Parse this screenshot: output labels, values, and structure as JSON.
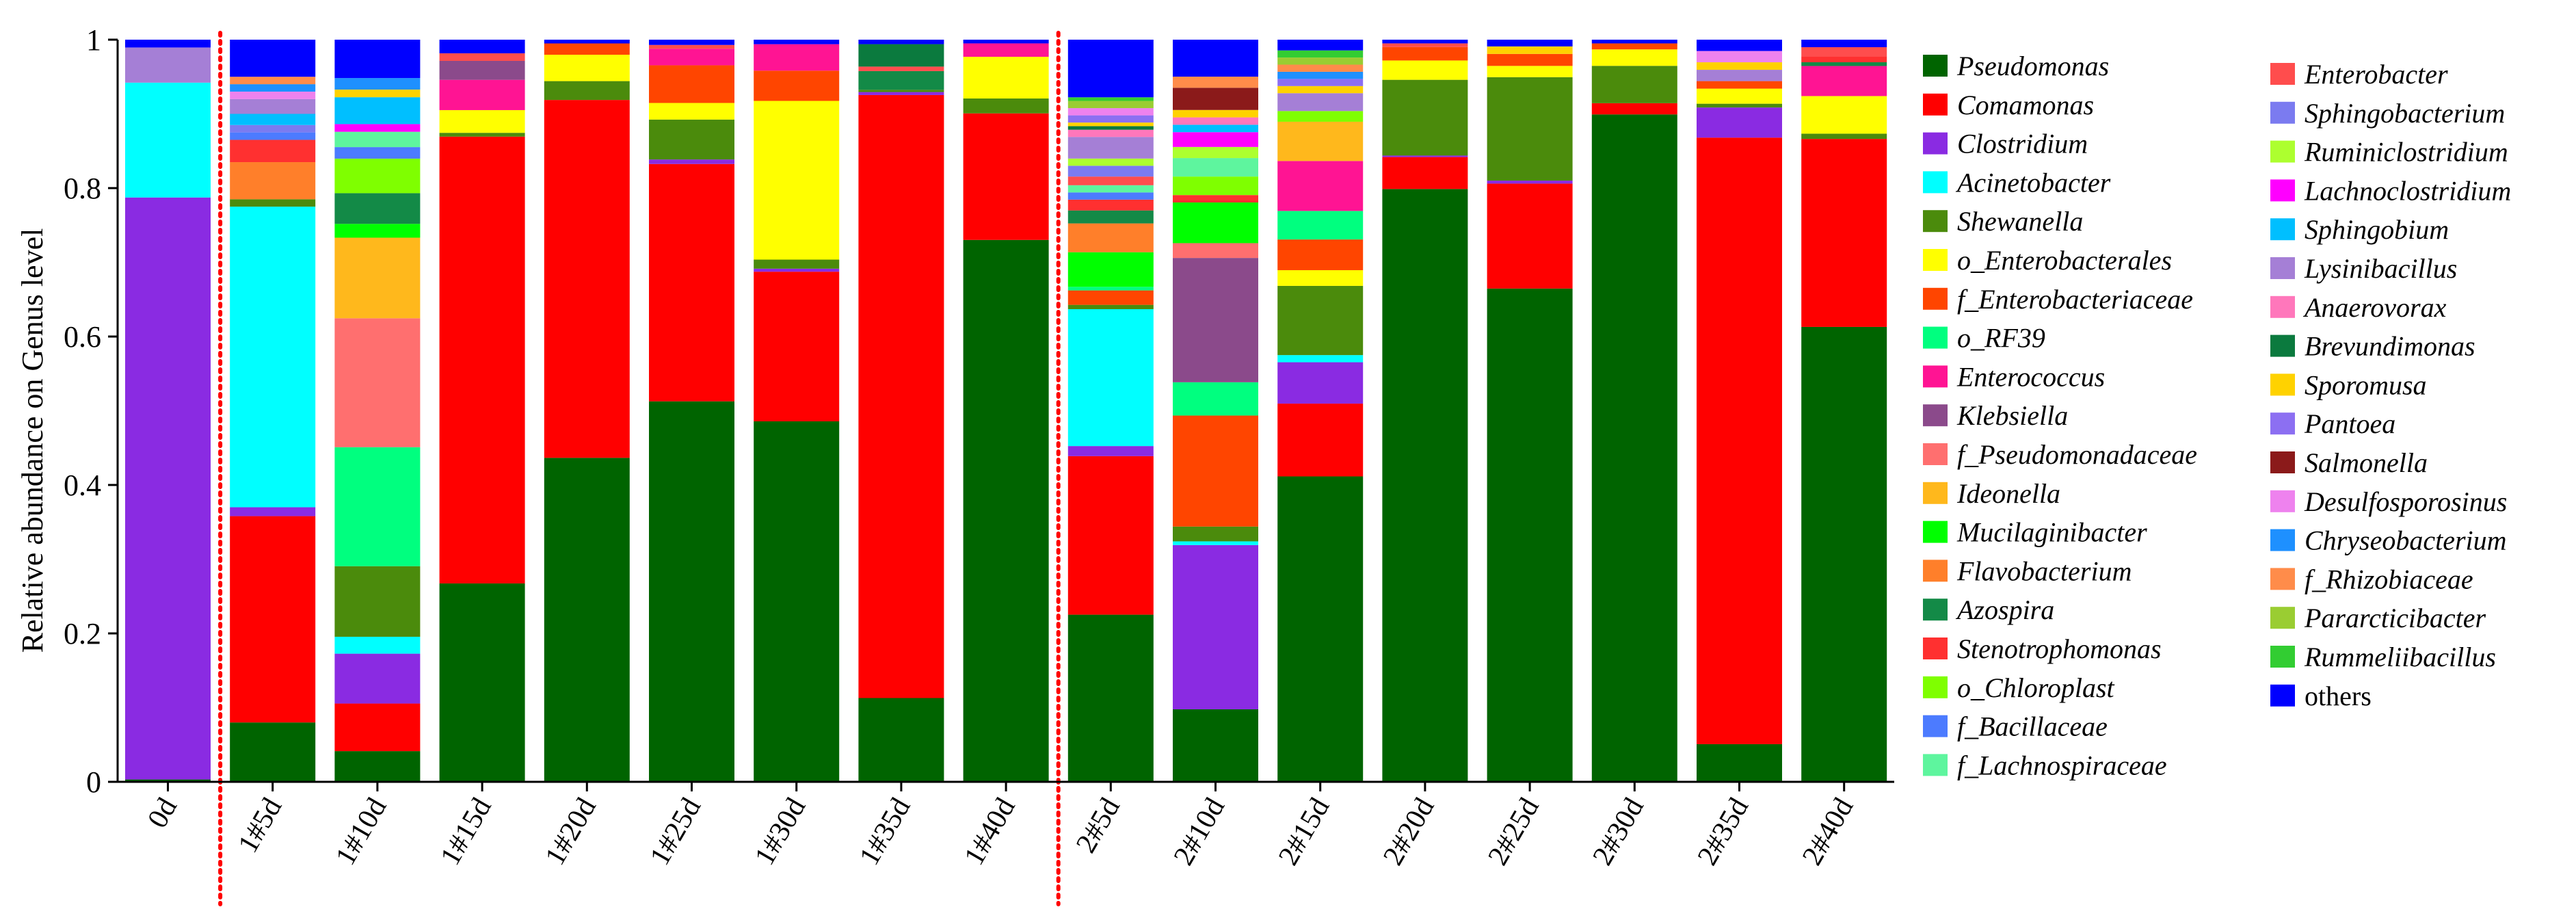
{
  "chart_data": {
    "type": "stacked-bar",
    "ylabel": "Relative abundance on Genus level",
    "ylim": [
      0,
      1
    ],
    "yticks": [
      "0",
      "0.2",
      "0.4",
      "0.6",
      "0.8",
      "1"
    ],
    "categories": [
      "0d",
      "1#5d",
      "1#10d",
      "1#15d",
      "1#20d",
      "1#25d",
      "1#30d",
      "1#35d",
      "1#40d",
      "2#5d",
      "2#10d",
      "2#15d",
      "2#20d",
      "2#25d",
      "2#30d",
      "2#35d",
      "2#40d"
    ],
    "group_separators_after": [
      "0d",
      "1#40d"
    ],
    "series": [
      {
        "name": "Pseudomonas",
        "italic": true,
        "color": "#006400",
        "values": [
          0.003,
          0.08,
          0.04,
          0.262,
          0.43,
          0.505,
          0.477,
          0.112,
          0.728,
          0.232,
          0.098,
          0.428,
          0.798,
          0.658,
          0.893,
          0.05,
          0.605
        ]
      },
      {
        "name": "Comamonas",
        "italic": true,
        "color": "#FF0000",
        "values": [
          0,
          0.278,
          0.062,
          0.59,
          0.475,
          0.315,
          0.198,
          0.806,
          0.17,
          0.22,
          0,
          0.102,
          0.043,
          0.14,
          0.015,
          0.805,
          0.25
        ]
      },
      {
        "name": "Clostridium",
        "italic": true,
        "color": "#8A2BE2",
        "values": [
          0.745,
          0.012,
          0.065,
          0,
          0,
          0.006,
          0.004,
          0.004,
          0,
          0.014,
          0.222,
          0.058,
          0.002,
          0.004,
          0,
          0.04,
          0
        ]
      },
      {
        "name": "Acinetobacter",
        "italic": true,
        "color": "#00FFFF",
        "values": [
          0.147,
          0.405,
          0.022,
          0,
          0,
          0,
          0,
          0,
          0,
          0.19,
          0.005,
          0.01,
          0,
          0,
          0,
          0,
          0
        ]
      },
      {
        "name": "Shewanella",
        "italic": true,
        "color": "#4B8B0C",
        "values": [
          0,
          0.01,
          0.092,
          0.005,
          0.025,
          0.053,
          0.012,
          0.003,
          0.02,
          0.006,
          0.02,
          0.097,
          0.102,
          0.138,
          0.05,
          0.005,
          0.007
        ]
      },
      {
        "name": "o_Enterobacterales",
        "italic": true,
        "color": "#FFFF00",
        "values": [
          0,
          0,
          0,
          0.03,
          0.035,
          0.022,
          0.21,
          0,
          0.056,
          0,
          0,
          0.022,
          0.026,
          0.015,
          0.022,
          0.02,
          0.05
        ]
      },
      {
        "name": "f_Enterobacteriaceae",
        "italic": true,
        "color": "#FF4500",
        "values": [
          0,
          0,
          0,
          0,
          0.015,
          0.05,
          0.04,
          0,
          0,
          0.02,
          0.15,
          0.043,
          0.018,
          0.016,
          0.008,
          0.01,
          0
        ]
      },
      {
        "name": "o_RF39",
        "italic": true,
        "color": "#00FF7F",
        "values": [
          0,
          0,
          0.155,
          0,
          0,
          0,
          0,
          0,
          0,
          0.005,
          0.045,
          0.04,
          0,
          0,
          0,
          0,
          0
        ]
      },
      {
        "name": "Enterococcus",
        "italic": true,
        "color": "#FF1493",
        "values": [
          0,
          0,
          0,
          0.04,
          0,
          0.022,
          0.035,
          0,
          0.018,
          0,
          0,
          0.07,
          0,
          0,
          0,
          0,
          0.04
        ]
      },
      {
        "name": "Klebsiella",
        "italic": true,
        "color": "#8B4A8B",
        "values": [
          0,
          0,
          0,
          0.025,
          0,
          0,
          0,
          0,
          0,
          0,
          0.168,
          0,
          0,
          0,
          0,
          0,
          0
        ]
      },
      {
        "name": "f_Pseudomonadaceae",
        "italic": true,
        "color": "#FF6F6F",
        "values": [
          0,
          0,
          0.168,
          0,
          0,
          0,
          0,
          0,
          0,
          0,
          0.02,
          0,
          0,
          0,
          0,
          0,
          0
        ]
      },
      {
        "name": "Ideonella",
        "italic": true,
        "color": "#FFB81C",
        "values": [
          0,
          0,
          0.105,
          0,
          0,
          0,
          0,
          0,
          0,
          0,
          0,
          0.055,
          0,
          0,
          0,
          0,
          0
        ]
      },
      {
        "name": "Mucilaginibacter",
        "italic": true,
        "color": "#00FF00",
        "values": [
          0,
          0,
          0.018,
          0,
          0,
          0,
          0,
          0,
          0,
          0.048,
          0.055,
          0,
          0,
          0,
          0,
          0,
          0
        ]
      },
      {
        "name": "Flavobacterium",
        "italic": true,
        "color": "#FF7F2A",
        "values": [
          0,
          0.05,
          0,
          0,
          0,
          0,
          0,
          0,
          0,
          0.04,
          0,
          0,
          0,
          0,
          0,
          0,
          0
        ]
      },
      {
        "name": "Azospira",
        "italic": true,
        "color": "#138A47",
        "values": [
          0,
          0,
          0.04,
          0,
          0,
          0,
          0,
          0.025,
          0,
          0.018,
          0,
          0,
          0,
          0,
          0,
          0,
          0.005
        ]
      },
      {
        "name": "Stenotrophomonas",
        "italic": true,
        "color": "#FF3030",
        "values": [
          0,
          0.03,
          0,
          0,
          0,
          0,
          0,
          0,
          0,
          0.015,
          0.01,
          0,
          0,
          0,
          0,
          0,
          0.008
        ]
      },
      {
        "name": "o_Chloroplast",
        "italic": true,
        "color": "#7FFF00",
        "values": [
          0,
          0,
          0.045,
          0,
          0,
          0,
          0,
          0,
          0,
          0,
          0.025,
          0.015,
          0,
          0,
          0,
          0,
          0
        ]
      },
      {
        "name": "f_Bacillaceae",
        "italic": true,
        "color": "#4C7BFF",
        "values": [
          0,
          0.01,
          0.015,
          0,
          0,
          0,
          0,
          0,
          0,
          0.01,
          0,
          0,
          0,
          0,
          0,
          0,
          0
        ]
      },
      {
        "name": "f_Lachnospiraceae",
        "italic": true,
        "color": "#5EF59E",
        "values": [
          0,
          0,
          0.02,
          0,
          0,
          0,
          0,
          0,
          0,
          0.01,
          0.025,
          0,
          0,
          0,
          0,
          0,
          0
        ]
      },
      {
        "name": "Enterobacter",
        "italic": true,
        "color": "#FF4D4D",
        "values": [
          0,
          0,
          0,
          0.01,
          0,
          0.005,
          0,
          0.006,
          0,
          0.012,
          0,
          0,
          0.005,
          0,
          0,
          0,
          0.012
        ]
      },
      {
        "name": "Sphingobacterium",
        "italic": true,
        "color": "#7B7BF0",
        "values": [
          0,
          0.01,
          0,
          0,
          0,
          0,
          0,
          0,
          0,
          0.015,
          0,
          0,
          0,
          0,
          0,
          0,
          0
        ]
      },
      {
        "name": "Ruminiclostridium",
        "italic": true,
        "color": "#ADFF2F",
        "values": [
          0,
          0,
          0,
          0,
          0,
          0,
          0,
          0,
          0,
          0.01,
          0.015,
          0,
          0,
          0,
          0,
          0,
          0
        ]
      },
      {
        "name": "Lachnoclostridium",
        "italic": true,
        "color": "#FF00FF",
        "values": [
          0,
          0,
          0.01,
          0,
          0,
          0,
          0,
          0,
          0,
          0,
          0.02,
          0,
          0,
          0,
          0,
          0,
          0
        ]
      },
      {
        "name": "Sphingobium",
        "italic": true,
        "color": "#00BFFF",
        "values": [
          0,
          0.015,
          0.035,
          0,
          0,
          0,
          0,
          0,
          0,
          0,
          0.01,
          0,
          0,
          0,
          0,
          0,
          0
        ]
      },
      {
        "name": "Lysinibacillus",
        "italic": true,
        "color": "#A57FD6",
        "values": [
          0.045,
          0.02,
          0,
          0,
          0,
          0,
          0,
          0,
          0,
          0.03,
          0,
          0.025,
          0,
          0,
          0,
          0.015,
          0
        ]
      },
      {
        "name": "Anaerovorax",
        "italic": true,
        "color": "#FF77BB",
        "values": [
          0,
          0,
          0,
          0,
          0,
          0,
          0,
          0,
          0,
          0.01,
          0.01,
          0,
          0,
          0,
          0,
          0,
          0
        ]
      },
      {
        "name": "Brevundimonas",
        "italic": true,
        "color": "#0B7A3E",
        "values": [
          0,
          0,
          0,
          0,
          0,
          0,
          0,
          0.03,
          0,
          0.005,
          0,
          0,
          0,
          0,
          0,
          0,
          0
        ]
      },
      {
        "name": "Sporomusa",
        "italic": true,
        "color": "#FFD200",
        "values": [
          0,
          0,
          0.01,
          0,
          0,
          0,
          0,
          0,
          0,
          0.005,
          0.01,
          0.01,
          0,
          0.01,
          0,
          0.01,
          0
        ]
      },
      {
        "name": "Pantoea",
        "italic": true,
        "color": "#8C6FF2",
        "values": [
          0,
          0,
          0,
          0,
          0,
          0,
          0,
          0,
          0,
          0.01,
          0,
          0.01,
          0,
          0,
          0,
          0,
          0
        ]
      },
      {
        "name": "Salmonella",
        "italic": true,
        "color": "#8B1A1A",
        "values": [
          0,
          0,
          0,
          0,
          0,
          0,
          0,
          0,
          0,
          0,
          0.03,
          0,
          0,
          0,
          0,
          0,
          0
        ]
      },
      {
        "name": "Desulfosporosinus",
        "italic": true,
        "color": "#EE82EE",
        "values": [
          0,
          0.01,
          0,
          0,
          0,
          0,
          0,
          0,
          0,
          0.01,
          0,
          0,
          0,
          0,
          0,
          0.015,
          0
        ]
      },
      {
        "name": "Chryseobacterium",
        "italic": true,
        "color": "#1E90FF",
        "values": [
          0,
          0.01,
          0.015,
          0,
          0,
          0,
          0,
          0,
          0,
          0,
          0,
          0.01,
          0,
          0,
          0,
          0,
          0
        ]
      },
      {
        "name": "f_Rhizobiaceae",
        "italic": true,
        "color": "#FF8C4A",
        "values": [
          0,
          0.01,
          0,
          0,
          0,
          0,
          0,
          0,
          0,
          0,
          0.015,
          0.01,
          0,
          0,
          0,
          0,
          0
        ]
      },
      {
        "name": "Pararcticibacter",
        "italic": true,
        "color": "#9ACD32",
        "values": [
          0,
          0,
          0,
          0,
          0,
          0,
          0,
          0,
          0,
          0.01,
          0,
          0.01,
          0,
          0,
          0,
          0,
          0
        ]
      },
      {
        "name": "Rummeliibacillus",
        "italic": true,
        "color": "#32CD32",
        "values": [
          0,
          0,
          0,
          0,
          0,
          0,
          0,
          0,
          0,
          0.005,
          0,
          0.01,
          0,
          0,
          0,
          0,
          0
        ]
      },
      {
        "name": "others",
        "italic": false,
        "color": "#0000FF",
        "values": [
          0.01,
          0.05,
          0.05,
          0.018,
          0.005,
          0.007,
          0.006,
          0.006,
          0.005,
          0.08,
          0.05,
          0.015,
          0.005,
          0.009,
          0.005,
          0.015,
          0.01
        ]
      }
    ]
  }
}
